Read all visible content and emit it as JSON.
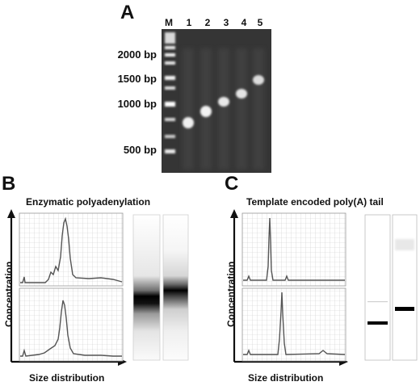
{
  "panel_a": {
    "letter": "A",
    "lanes": [
      "M",
      "1",
      "2",
      "3",
      "4",
      "5"
    ],
    "ladder": [
      "2000 bp",
      "1500 bp",
      "1000 bp",
      "500 bp"
    ]
  },
  "panel_b": {
    "letter": "B",
    "title": "Enzymatic polyadenylation",
    "ylabel": "Concentration",
    "xlabel": "Size distribution"
  },
  "panel_c": {
    "letter": "C",
    "title": "Template encoded poly(A) tail",
    "ylabel": "Concentration",
    "xlabel": "Size distribution"
  }
}
